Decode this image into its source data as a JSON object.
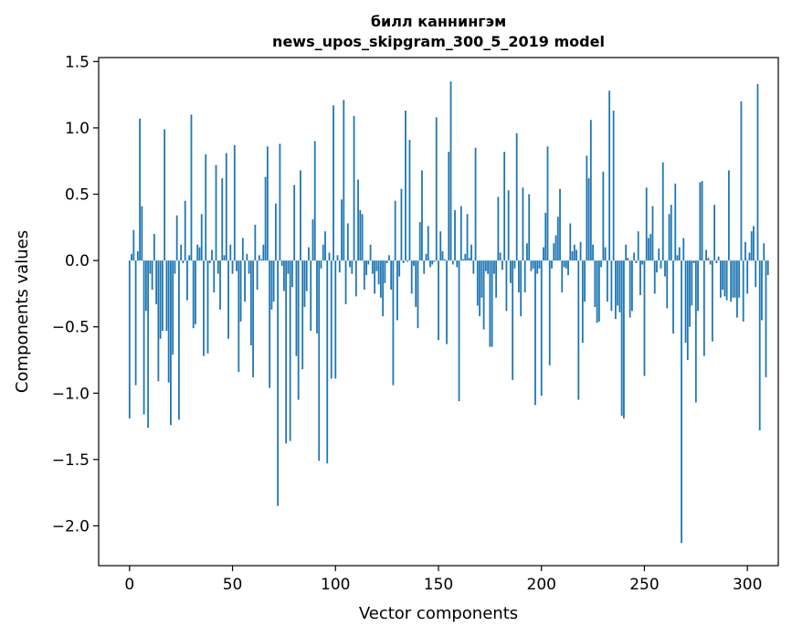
{
  "chart_data": {
    "type": "bar",
    "title": [
      "билл каннингэм",
      "news_upos_skipgram_300_5_2019 model"
    ],
    "xlabel": "Vector components",
    "ylabel": "Components values",
    "xlim": [
      -15,
      315
    ],
    "ylim": [
      -2.3,
      1.53
    ],
    "xticks": [
      0,
      50,
      100,
      150,
      200,
      250,
      300
    ],
    "xtick_labels": [
      "0",
      "50",
      "100",
      "150",
      "200",
      "250",
      "300"
    ],
    "yticks": [
      -2.0,
      -1.5,
      -1.0,
      -0.5,
      0.0,
      0.5,
      1.0,
      1.5
    ],
    "ytick_labels": [
      "−2.0",
      "−1.5",
      "−1.0",
      "−0.5",
      "0.0",
      "0.5",
      "1.0",
      "1.5"
    ],
    "bar_color": "#1f77b4",
    "grid": false,
    "values": [
      -1.19,
      0.05,
      0.23,
      -0.94,
      0.07,
      1.07,
      0.41,
      -1.16,
      -0.38,
      -1.26,
      -0.1,
      -0.22,
      0.2,
      -0.33,
      -0.91,
      -0.59,
      -0.53,
      0.99,
      -0.53,
      -0.92,
      -1.24,
      -0.71,
      -0.1,
      0.34,
      -1.2,
      0.12,
      -0.02,
      0.45,
      -0.3,
      0.04,
      1.1,
      -0.51,
      -0.48,
      0.12,
      0.1,
      0.35,
      -0.72,
      0.8,
      -0.7,
      -0.02,
      0.08,
      -0.24,
      0.72,
      -0.1,
      -0.37,
      0.62,
      0.04,
      0.81,
      -0.59,
      0.12,
      -0.1,
      0.87,
      -0.08,
      -0.84,
      -0.46,
      0.17,
      -0.31,
      0.05,
      -0.1,
      -0.64,
      -0.88,
      0.27,
      -0.22,
      0.04,
      0.01,
      0.12,
      0.63,
      0.86,
      -0.96,
      -0.37,
      -0.31,
      0.43,
      -1.85,
      0.88,
      -0.04,
      -0.23,
      -1.38,
      -0.1,
      -1.36,
      -0.2,
      0.57,
      -0.72,
      -1.05,
      0.68,
      -0.82,
      -0.35,
      -0.23,
      0.1,
      -0.53,
      0.31,
      0.9,
      -0.55,
      -1.51,
      -0.06,
      0.12,
      0.22,
      -1.53,
      0.06,
      -0.89,
      1.17,
      -0.89,
      0.04,
      -0.09,
      0.46,
      1.21,
      -0.33,
      0.28,
      -0.05,
      -0.1,
      1.09,
      -0.27,
      0.61,
      0.38,
      0.35,
      -0.22,
      -0.11,
      -0.03,
      0.12,
      -0.1,
      -0.25,
      -0.08,
      -0.18,
      -0.28,
      -0.42,
      -0.17,
      -0.02,
      0.04,
      -0.22,
      -0.94,
      0.45,
      -0.45,
      -0.12,
      0.54,
      -0.02,
      1.13,
      -0.01,
      0.91,
      -0.25,
      -0.04,
      -0.35,
      -0.51,
      0.29,
      0.68,
      -0.1,
      0.05,
      0.26,
      -0.05,
      -0.03,
      -0.01,
      1.08,
      -0.6,
      0.22,
      0.07,
      0.01,
      -0.63,
      0.82,
      1.35,
      -0.03,
      0.38,
      -0.05,
      -1.06,
      0.41,
      0.01,
      0.05,
      0.35,
      0.02,
      0.12,
      -0.1,
      0.85,
      -0.34,
      -0.42,
      -0.28,
      -0.52,
      -0.08,
      -0.1,
      -0.65,
      -0.65,
      -0.1,
      -0.28,
      0.48,
      0.06,
      -0.07,
      0.82,
      -0.38,
      0.53,
      -0.17,
      -0.9,
      -0.06,
      0.96,
      -0.24,
      -0.42,
      0.55,
      -0.24,
      0.13,
      0.5,
      -0.08,
      -0.06,
      -1.09,
      -0.1,
      -0.06,
      -1.02,
      0.1,
      0.36,
      0.86,
      -0.79,
      -0.06,
      0.13,
      0.19,
      0.33,
      0.54,
      -0.24,
      -0.05,
      -0.06,
      -0.11,
      0.28,
      0.07,
      0.12,
      0.08,
      -1.05,
      0.14,
      -0.62,
      -0.31,
      0.79,
      0.62,
      1.06,
      0.12,
      -0.35,
      -0.47,
      -0.46,
      -0.05,
      0.67,
      0.1,
      -0.31,
      1.28,
      -0.38,
      1.13,
      -0.44,
      -0.34,
      -0.39,
      -1.17,
      -1.19,
      0.12,
      0.02,
      -0.43,
      -0.38,
      0.06,
      -0.02,
      0.22,
      -0.26,
      -0.03,
      -0.87,
      0.55,
      0.17,
      0.2,
      0.41,
      -0.25,
      -0.09,
      0.09,
      -0.06,
      0.74,
      -0.12,
      -0.36,
      0.35,
      0.42,
      -0.55,
      0.58,
      0.04,
      0.1,
      -2.13,
      0.17,
      -0.62,
      -0.75,
      -0.5,
      -0.34,
      -0.02,
      -1.07,
      -0.38,
      0.59,
      0.6,
      -0.72,
      0.08,
      0.02,
      -0.03,
      -0.61,
      0.42,
      -0.02,
      0.03,
      -0.28,
      -0.22,
      -0.27,
      -0.3,
      0.68,
      -0.31,
      -0.28,
      -0.28,
      -0.43,
      -0.28,
      1.2,
      -0.46,
      0.14,
      -0.25,
      0.06,
      0.22,
      0.26,
      -0.2,
      1.33,
      -1.28,
      -0.45,
      0.13,
      -0.88,
      -0.11
    ]
  }
}
